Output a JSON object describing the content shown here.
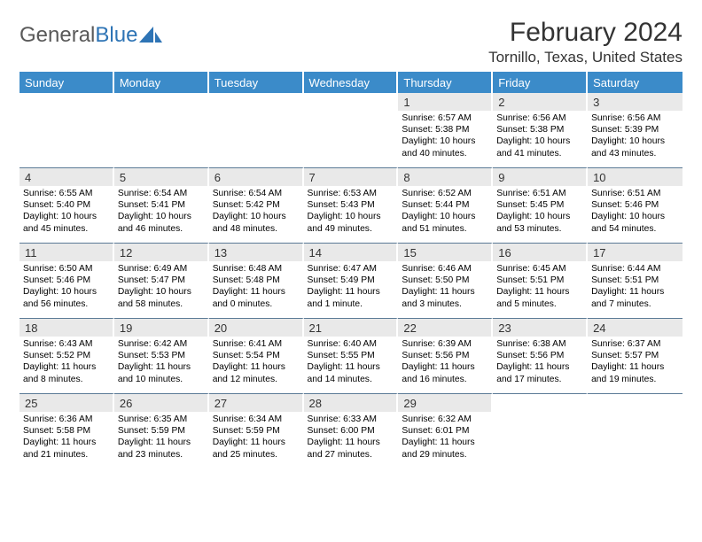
{
  "brand": {
    "gray": "General",
    "blue": "Blue"
  },
  "title": "February 2024",
  "location": "Tornillo, Texas, United States",
  "colors": {
    "header_bg": "#3b8bc9",
    "header_text": "#ffffff",
    "daynum_bg": "#e9e9e9",
    "rule": "#5b7a96",
    "brand_gray": "#595959",
    "brand_blue": "#2e74b5",
    "body_text": "#000000",
    "page_bg": "#ffffff"
  },
  "weekdays": [
    "Sunday",
    "Monday",
    "Tuesday",
    "Wednesday",
    "Thursday",
    "Friday",
    "Saturday"
  ],
  "weeks": [
    [
      null,
      null,
      null,
      null,
      {
        "n": "1",
        "sr": "6:57 AM",
        "ss": "5:38 PM",
        "dl": "10 hours and 40 minutes."
      },
      {
        "n": "2",
        "sr": "6:56 AM",
        "ss": "5:38 PM",
        "dl": "10 hours and 41 minutes."
      },
      {
        "n": "3",
        "sr": "6:56 AM",
        "ss": "5:39 PM",
        "dl": "10 hours and 43 minutes."
      }
    ],
    [
      {
        "n": "4",
        "sr": "6:55 AM",
        "ss": "5:40 PM",
        "dl": "10 hours and 45 minutes."
      },
      {
        "n": "5",
        "sr": "6:54 AM",
        "ss": "5:41 PM",
        "dl": "10 hours and 46 minutes."
      },
      {
        "n": "6",
        "sr": "6:54 AM",
        "ss": "5:42 PM",
        "dl": "10 hours and 48 minutes."
      },
      {
        "n": "7",
        "sr": "6:53 AM",
        "ss": "5:43 PM",
        "dl": "10 hours and 49 minutes."
      },
      {
        "n": "8",
        "sr": "6:52 AM",
        "ss": "5:44 PM",
        "dl": "10 hours and 51 minutes."
      },
      {
        "n": "9",
        "sr": "6:51 AM",
        "ss": "5:45 PM",
        "dl": "10 hours and 53 minutes."
      },
      {
        "n": "10",
        "sr": "6:51 AM",
        "ss": "5:46 PM",
        "dl": "10 hours and 54 minutes."
      }
    ],
    [
      {
        "n": "11",
        "sr": "6:50 AM",
        "ss": "5:46 PM",
        "dl": "10 hours and 56 minutes."
      },
      {
        "n": "12",
        "sr": "6:49 AM",
        "ss": "5:47 PM",
        "dl": "10 hours and 58 minutes."
      },
      {
        "n": "13",
        "sr": "6:48 AM",
        "ss": "5:48 PM",
        "dl": "11 hours and 0 minutes."
      },
      {
        "n": "14",
        "sr": "6:47 AM",
        "ss": "5:49 PM",
        "dl": "11 hours and 1 minute."
      },
      {
        "n": "15",
        "sr": "6:46 AM",
        "ss": "5:50 PM",
        "dl": "11 hours and 3 minutes."
      },
      {
        "n": "16",
        "sr": "6:45 AM",
        "ss": "5:51 PM",
        "dl": "11 hours and 5 minutes."
      },
      {
        "n": "17",
        "sr": "6:44 AM",
        "ss": "5:51 PM",
        "dl": "11 hours and 7 minutes."
      }
    ],
    [
      {
        "n": "18",
        "sr": "6:43 AM",
        "ss": "5:52 PM",
        "dl": "11 hours and 8 minutes."
      },
      {
        "n": "19",
        "sr": "6:42 AM",
        "ss": "5:53 PM",
        "dl": "11 hours and 10 minutes."
      },
      {
        "n": "20",
        "sr": "6:41 AM",
        "ss": "5:54 PM",
        "dl": "11 hours and 12 minutes."
      },
      {
        "n": "21",
        "sr": "6:40 AM",
        "ss": "5:55 PM",
        "dl": "11 hours and 14 minutes."
      },
      {
        "n": "22",
        "sr": "6:39 AM",
        "ss": "5:56 PM",
        "dl": "11 hours and 16 minutes."
      },
      {
        "n": "23",
        "sr": "6:38 AM",
        "ss": "5:56 PM",
        "dl": "11 hours and 17 minutes."
      },
      {
        "n": "24",
        "sr": "6:37 AM",
        "ss": "5:57 PM",
        "dl": "11 hours and 19 minutes."
      }
    ],
    [
      {
        "n": "25",
        "sr": "6:36 AM",
        "ss": "5:58 PM",
        "dl": "11 hours and 21 minutes."
      },
      {
        "n": "26",
        "sr": "6:35 AM",
        "ss": "5:59 PM",
        "dl": "11 hours and 23 minutes."
      },
      {
        "n": "27",
        "sr": "6:34 AM",
        "ss": "5:59 PM",
        "dl": "11 hours and 25 minutes."
      },
      {
        "n": "28",
        "sr": "6:33 AM",
        "ss": "6:00 PM",
        "dl": "11 hours and 27 minutes."
      },
      {
        "n": "29",
        "sr": "6:32 AM",
        "ss": "6:01 PM",
        "dl": "11 hours and 29 minutes."
      },
      null,
      null
    ]
  ]
}
